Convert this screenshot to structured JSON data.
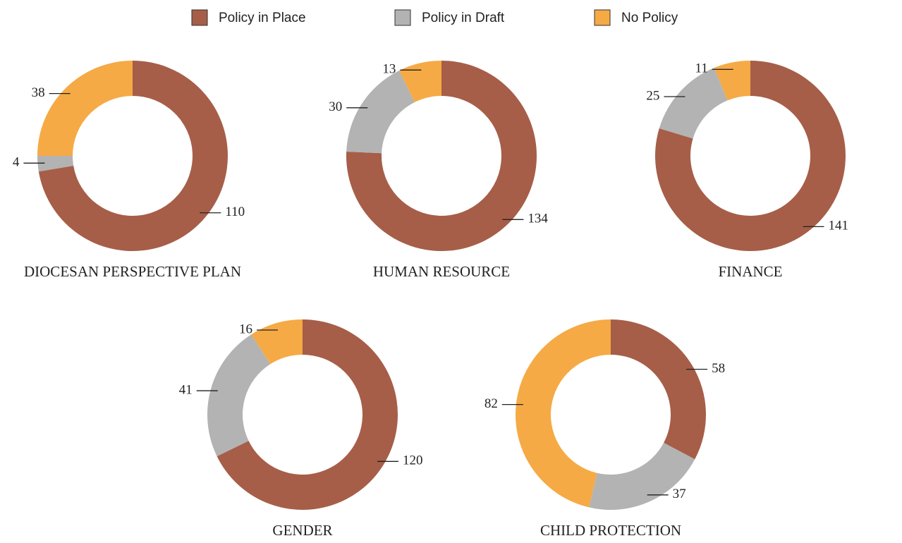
{
  "legend": {
    "labels": [
      "Policy in Place",
      "Policy in Draft",
      "No Policy"
    ],
    "colors": [
      "#a65e48",
      "#b3b3b3",
      "#f5aa45"
    ]
  },
  "chart_data": [
    {
      "type": "pie",
      "title": "DIOCESAN PERSPECTIVE PLAN",
      "values": [
        110,
        4,
        38
      ]
    },
    {
      "type": "pie",
      "title": "HUMAN RESOURCE",
      "values": [
        134,
        30,
        13
      ]
    },
    {
      "type": "pie",
      "title": "FINANCE",
      "values": [
        141,
        25,
        11
      ]
    },
    {
      "type": "pie",
      "title": "GENDER",
      "values": [
        120,
        41,
        16
      ]
    },
    {
      "type": "pie",
      "title": "CHILD PROTECTION",
      "values": [
        58,
        37,
        82
      ]
    }
  ]
}
